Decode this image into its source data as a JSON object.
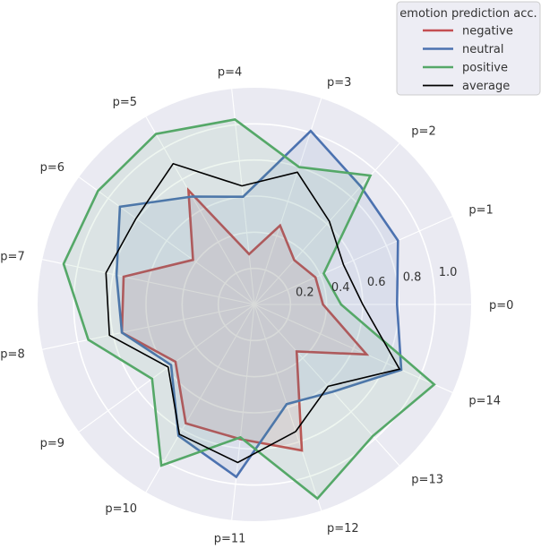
{
  "chart_data": {
    "type": "radar",
    "categories": [
      "p=0",
      "p=1",
      "p=2",
      "p=3",
      "p=4",
      "p=5",
      "p=6",
      "p=7",
      "p=8",
      "p=9",
      "p=10",
      "p=11",
      "p=12",
      "p=13",
      "p=14"
    ],
    "rlim": [
      0,
      1.2
    ],
    "rticks": [
      0.2,
      0.4,
      0.6,
      0.8,
      1.0
    ],
    "rtick_labels": [
      "0.2",
      "0.4",
      "0.6",
      "0.8",
      "1.0"
    ],
    "grid": true,
    "legend": {
      "title": "emotion prediction acc.",
      "position": "top-right"
    },
    "series": [
      {
        "name": "negative",
        "color": "#c44e52",
        "values": [
          0.38,
          0.37,
          0.33,
          0.46,
          0.28,
          0.73,
          0.42,
          0.74,
          0.75,
          0.54,
          0.76,
          0.75,
          0.85,
          0.35,
          0.68
        ]
      },
      {
        "name": "neutral",
        "color": "#4c72b0",
        "values": [
          0.79,
          0.87,
          0.88,
          1.01,
          0.6,
          0.69,
          0.92,
          0.78,
          0.75,
          0.57,
          0.84,
          0.96,
          0.58,
          0.65,
          0.89
        ]
      },
      {
        "name": "positive",
        "color": "#55a868",
        "values": [
          0.48,
          0.42,
          0.96,
          0.8,
          1.03,
          1.09,
          1.07,
          1.08,
          0.94,
          0.7,
          1.03,
          0.74,
          1.13,
          0.98,
          1.09
        ]
      },
      {
        "name": "average",
        "color": "#000000",
        "values": [
          0.6,
          0.54,
          0.62,
          0.77,
          0.66,
          0.9,
          0.81,
          0.84,
          0.82,
          0.59,
          0.83,
          0.88,
          0.74,
          0.61,
          0.88
        ]
      }
    ]
  }
}
